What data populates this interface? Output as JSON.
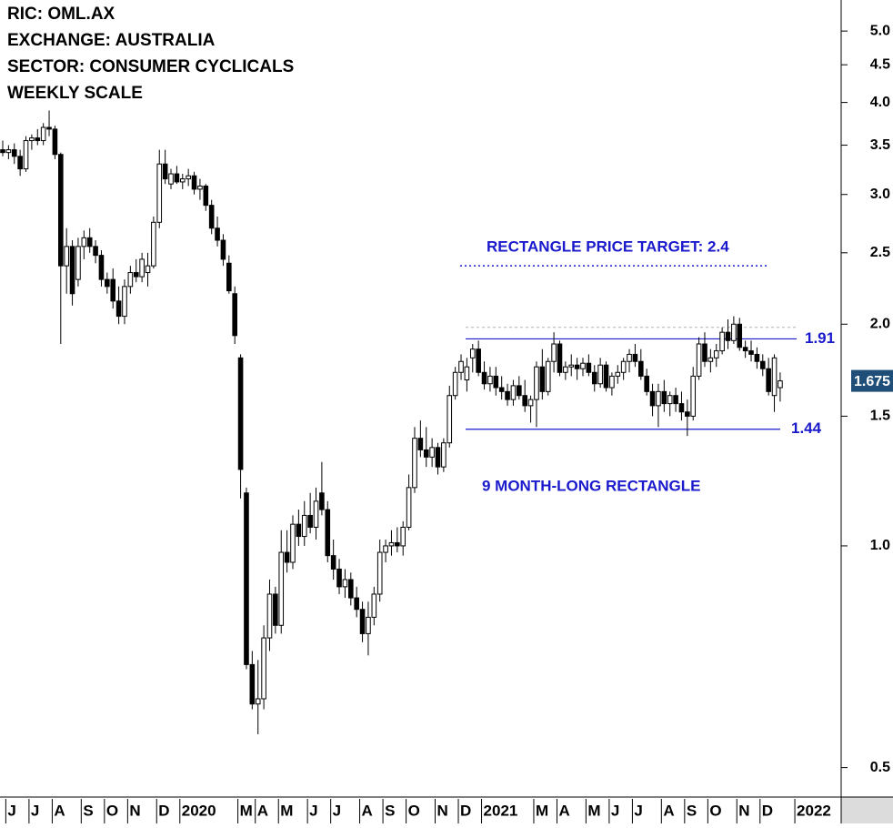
{
  "chart_data": {
    "type": "candlestick",
    "header_lines": [
      "RIC: OML.AX",
      "EXCHANGE: AUSTRALIA",
      "SECTOR: CONSUMER CYCLICALS",
      "WEEKLY SCALE"
    ],
    "log_scale": true,
    "ylim": [
      0.456,
      5.51
    ],
    "yticks": [
      0.5,
      {
        "value": 1,
        "label": "1.0"
      },
      1.5,
      {
        "value": 2,
        "label": "2.0"
      },
      2.5,
      {
        "value": 3,
        "label": "3.0"
      },
      3.5,
      {
        "value": 4,
        "label": "4.0"
      },
      4.5,
      {
        "value": 5,
        "label": "5.0"
      }
    ],
    "categories": [
      null,
      "J",
      null,
      null,
      null,
      "J",
      null,
      null,
      null,
      "A",
      null,
      null,
      null,
      null,
      "S",
      null,
      null,
      null,
      "O",
      null,
      null,
      null,
      "N",
      null,
      null,
      null,
      null,
      "D",
      null,
      null,
      null,
      "2020",
      null,
      null,
      null,
      null,
      null,
      null,
      null,
      null,
      null,
      "M",
      null,
      null,
      "A",
      null,
      null,
      null,
      "M",
      null,
      null,
      null,
      null,
      "J",
      null,
      null,
      null,
      "J",
      null,
      null,
      null,
      null,
      "A",
      null,
      null,
      null,
      "S",
      null,
      null,
      null,
      "O",
      null,
      null,
      null,
      null,
      "N",
      null,
      null,
      null,
      "D",
      null,
      null,
      null,
      "2021",
      null,
      null,
      null,
      null,
      null,
      null,
      null,
      null,
      "M",
      null,
      null,
      null,
      "A",
      null,
      null,
      null,
      null,
      "M",
      null,
      null,
      null,
      "J",
      null,
      null,
      null,
      "J",
      null,
      null,
      null,
      null,
      "A",
      null,
      null,
      null,
      "S",
      null,
      null,
      null,
      "O",
      null,
      null,
      null,
      null,
      "N",
      null,
      null,
      null,
      "D",
      null,
      null,
      null,
      null,
      null,
      "2022",
      null,
      null,
      null,
      null,
      null,
      null,
      null
    ],
    "open": [
      3.45,
      3.42,
      3.45,
      3.38,
      3.25,
      3.55,
      3.58,
      3.55,
      3.7,
      3.68,
      3.4,
      2.4,
      2.55,
      2.3,
      2.55,
      2.62,
      2.55,
      2.48,
      2.3,
      2.3,
      2.15,
      2.05,
      2.25,
      2.35,
      2.32,
      2.35,
      2.4,
      2.75,
      3.3,
      3.1,
      3.2,
      3.12,
      3.15,
      3.18,
      3.05,
      3.08,
      2.9,
      2.7,
      2.6,
      2.42,
      2.2,
      1.8,
      1.18,
      0.69,
      0.61,
      0.62,
      0.75,
      0.86,
      0.78,
      0.98,
      0.95,
      1.07,
      1.03,
      1.1,
      1.06,
      1.18,
      1.12,
      0.97,
      0.93,
      0.88,
      0.9,
      0.85,
      0.82,
      0.76,
      0.8,
      0.86,
      0.98,
      1.0,
      1.01,
      1.0,
      1.06,
      1.2,
      1.4,
      1.35,
      1.32,
      1.36,
      1.28,
      1.38,
      1.6,
      1.72,
      1.68,
      1.8,
      1.85,
      1.72,
      1.66,
      1.7,
      1.64,
      1.62,
      1.58,
      1.65,
      1.6,
      1.55,
      1.58,
      1.75,
      1.62,
      1.78,
      1.88,
      1.72,
      1.75,
      1.76,
      1.74,
      1.77,
      1.72,
      1.66,
      1.76,
      1.64,
      1.7,
      1.72,
      1.78,
      1.82,
      1.78,
      1.7,
      1.62,
      1.55,
      1.62,
      1.56,
      1.6,
      1.56,
      1.52,
      1.5,
      1.7,
      1.88,
      1.78,
      1.8,
      1.84,
      1.95,
      1.9,
      2.0,
      1.86,
      1.84,
      1.82,
      1.78,
      1.74,
      1.6,
      1.64,
      null,
      null,
      null,
      null,
      null,
      null,
      null,
      null,
      null,
      null
    ],
    "high": [
      3.55,
      3.5,
      3.52,
      3.45,
      3.6,
      3.62,
      3.68,
      3.75,
      3.9,
      3.72,
      3.42,
      2.7,
      2.6,
      2.62,
      2.68,
      2.7,
      2.6,
      2.52,
      2.35,
      2.38,
      2.25,
      2.3,
      2.4,
      2.45,
      2.5,
      2.5,
      2.8,
      3.45,
      3.45,
      3.25,
      3.28,
      3.2,
      3.25,
      3.22,
      3.15,
      3.1,
      2.95,
      2.8,
      2.65,
      2.48,
      2.25,
      1.82,
      1.2,
      0.72,
      0.7,
      0.78,
      0.9,
      0.88,
      1.05,
      1.05,
      1.1,
      1.12,
      1.15,
      1.18,
      1.2,
      1.3,
      1.15,
      1.02,
      0.96,
      0.93,
      0.92,
      0.88,
      0.84,
      0.84,
      0.88,
      1.02,
      1.02,
      1.05,
      1.06,
      1.08,
      1.25,
      1.45,
      1.48,
      1.45,
      1.4,
      1.38,
      1.4,
      1.65,
      1.75,
      1.82,
      1.8,
      1.88,
      1.9,
      1.78,
      1.75,
      1.75,
      1.7,
      1.66,
      1.68,
      1.7,
      1.68,
      1.6,
      1.78,
      1.85,
      1.8,
      1.95,
      1.9,
      1.78,
      1.82,
      1.8,
      1.8,
      1.82,
      1.76,
      1.8,
      1.78,
      1.72,
      1.76,
      1.8,
      1.85,
      1.88,
      1.85,
      1.74,
      1.66,
      1.66,
      1.68,
      1.62,
      1.64,
      1.62,
      1.58,
      1.75,
      1.92,
      1.95,
      1.85,
      1.88,
      1.98,
      2.03,
      2.05,
      2.04,
      1.9,
      1.9,
      1.86,
      1.82,
      1.8,
      1.82,
      1.72,
      null,
      null,
      null,
      null,
      null,
      null,
      null,
      null,
      null,
      null
    ],
    "low": [
      3.38,
      3.35,
      3.3,
      3.18,
      3.22,
      3.45,
      3.5,
      3.5,
      3.6,
      3.35,
      1.88,
      2.2,
      2.12,
      2.25,
      2.45,
      2.5,
      2.42,
      2.25,
      2.2,
      2.1,
      2.0,
      2.0,
      2.2,
      2.28,
      2.28,
      2.25,
      2.38,
      2.7,
      3.1,
      3.05,
      3.1,
      3.05,
      3.08,
      3.0,
      2.95,
      2.85,
      2.65,
      2.55,
      2.4,
      2.2,
      1.88,
      1.16,
      0.68,
      0.6,
      0.555,
      0.6,
      0.72,
      0.76,
      0.76,
      0.92,
      0.93,
      1.0,
      1.0,
      1.04,
      1.02,
      1.1,
      0.95,
      0.9,
      0.86,
      0.85,
      0.83,
      0.8,
      0.74,
      0.71,
      0.78,
      0.84,
      0.95,
      0.97,
      0.98,
      0.97,
      1.05,
      1.18,
      1.32,
      1.28,
      1.28,
      1.25,
      1.26,
      1.36,
      1.58,
      1.68,
      1.62,
      1.72,
      1.7,
      1.63,
      1.62,
      1.6,
      1.58,
      1.55,
      1.55,
      1.58,
      1.52,
      1.47,
      1.45,
      1.58,
      1.6,
      1.72,
      1.7,
      1.68,
      1.7,
      1.68,
      1.7,
      1.7,
      1.62,
      1.64,
      1.62,
      1.6,
      1.66,
      1.68,
      1.72,
      1.75,
      1.68,
      1.6,
      1.5,
      1.45,
      1.52,
      1.5,
      1.52,
      1.48,
      1.41,
      1.48,
      1.68,
      1.75,
      1.72,
      1.75,
      1.82,
      1.85,
      1.88,
      1.84,
      1.8,
      1.78,
      1.74,
      1.7,
      1.6,
      1.52,
      1.57,
      null,
      null,
      null,
      null,
      null,
      null,
      null,
      null,
      null,
      null
    ],
    "close": [
      3.42,
      3.45,
      3.38,
      3.25,
      3.55,
      3.58,
      3.55,
      3.7,
      3.68,
      3.4,
      2.4,
      2.55,
      2.2,
      2.55,
      2.62,
      2.55,
      2.48,
      2.3,
      2.25,
      2.15,
      2.05,
      2.25,
      2.35,
      2.32,
      2.45,
      2.4,
      2.75,
      3.3,
      3.15,
      3.2,
      3.12,
      3.15,
      3.18,
      3.05,
      3.08,
      2.9,
      2.7,
      2.6,
      2.45,
      2.22,
      1.93,
      1.27,
      0.69,
      0.61,
      0.62,
      0.75,
      0.86,
      0.78,
      0.98,
      0.95,
      1.07,
      1.03,
      1.1,
      1.06,
      1.15,
      1.12,
      0.97,
      0.93,
      0.88,
      0.9,
      0.85,
      0.82,
      0.76,
      0.8,
      0.86,
      0.98,
      1.0,
      1.01,
      1.0,
      1.06,
      1.2,
      1.4,
      1.35,
      1.32,
      1.36,
      1.28,
      1.38,
      1.6,
      1.72,
      1.78,
      1.75,
      1.85,
      1.72,
      1.66,
      1.7,
      1.64,
      1.62,
      1.58,
      1.65,
      1.6,
      1.55,
      1.58,
      1.75,
      1.62,
      1.78,
      1.88,
      1.72,
      1.75,
      1.76,
      1.74,
      1.77,
      1.72,
      1.66,
      1.76,
      1.64,
      1.7,
      1.72,
      1.78,
      1.82,
      1.78,
      1.7,
      1.62,
      1.55,
      1.62,
      1.56,
      1.6,
      1.56,
      1.52,
      1.5,
      1.7,
      1.88,
      1.78,
      1.8,
      1.84,
      1.95,
      1.9,
      2.0,
      1.86,
      1.84,
      1.82,
      1.78,
      1.74,
      1.62,
      1.8,
      1.675,
      null,
      null,
      null,
      null,
      null,
      null,
      null,
      null,
      null,
      null
    ],
    "target": {
      "label": "RECTANGLE PRICE TARGET: 2.4",
      "value": 2.4,
      "color": "#1a1acc"
    },
    "upper_line": {
      "value": 1.98,
      "color": "#b0b0b0"
    },
    "levels": [
      {
        "value": 1.91,
        "color": "#1a1acc"
      },
      {
        "value": 1.44,
        "color": "#1a1acc"
      }
    ],
    "pattern_label": "9 MONTH-LONG RECTANGLE",
    "last_price_color": "#1f4e79"
  }
}
